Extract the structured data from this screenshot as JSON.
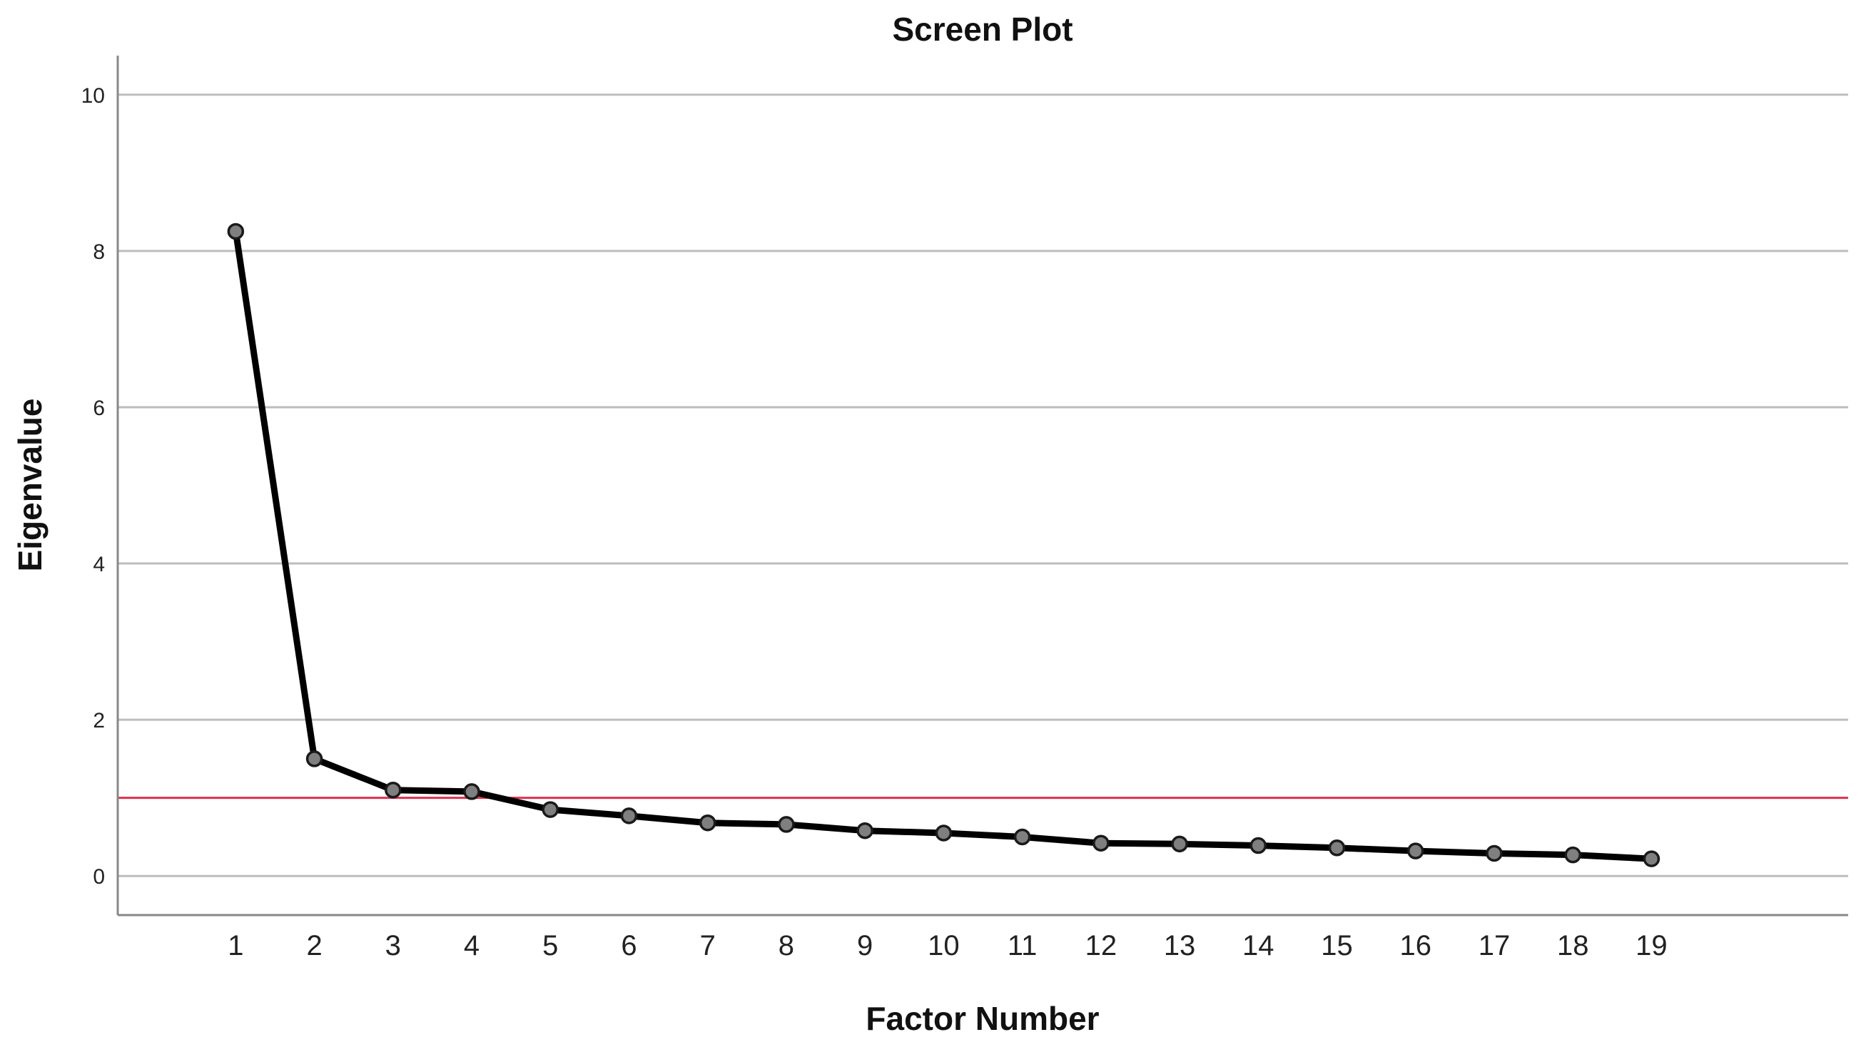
{
  "chart_data": {
    "type": "line",
    "title": "Screen Plot",
    "xlabel": "Factor Number",
    "ylabel": "Eigenvalue",
    "x": [
      1,
      2,
      3,
      4,
      5,
      6,
      7,
      8,
      9,
      10,
      11,
      12,
      13,
      14,
      15,
      16,
      17,
      18,
      19
    ],
    "x_tick_labels": [
      "1",
      "2",
      "3",
      "4",
      "5",
      "6",
      "7",
      "8",
      "9",
      "10",
      "11",
      "12",
      "13",
      "14",
      "15",
      "16",
      "17",
      "18",
      "19"
    ],
    "series": [
      {
        "values": [
          8.25,
          1.5,
          1.1,
          1.08,
          0.85,
          0.77,
          0.68,
          0.66,
          0.58,
          0.55,
          0.5,
          0.42,
          0.41,
          0.39,
          0.36,
          0.32,
          0.29,
          0.27,
          0.22
        ],
        "color": "#000000",
        "marker_color": "#7f7f7f"
      }
    ],
    "ylim": [
      -0.5,
      10.5
    ],
    "xlim": [
      -0.5,
      21.5
    ],
    "y_ticks": [
      0,
      2,
      4,
      6,
      8,
      10
    ],
    "y_tick_labels": [
      "0",
      "2",
      "4",
      "6",
      "8",
      "10"
    ],
    "reference_line": {
      "y": 1,
      "color": "#e0304e"
    },
    "grid": true,
    "grid_axis": "y",
    "grid_color": "#bdbdbd",
    "axis_color": "#888888",
    "legend": "none"
  }
}
